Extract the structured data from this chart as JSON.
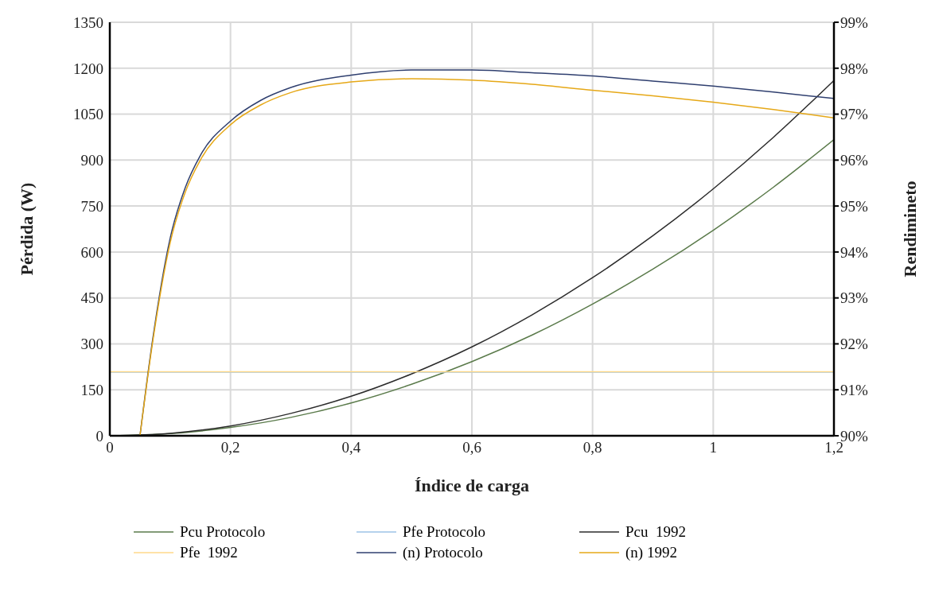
{
  "chart_data": {
    "type": "line",
    "xlabel": "Índice de carga",
    "ylabel": "Pérdida (W)",
    "y2label": "Rendimineto",
    "xlim": [
      0,
      1.2
    ],
    "xticks": [
      0,
      {
        "value": 0.2,
        "label": "0,2"
      },
      {
        "value": 0.4,
        "label": "0,4"
      },
      {
        "value": 0.6,
        "label": "0,6"
      },
      {
        "value": 0.8,
        "label": "0,8"
      },
      1,
      {
        "value": 1.2,
        "label": "1,2"
      }
    ],
    "ylim": [
      0,
      1350
    ],
    "yticks": [
      0,
      150,
      300,
      450,
      600,
      750,
      900,
      1050,
      1200,
      1350
    ],
    "y2lim": [
      90,
      99
    ],
    "y2ticks": [
      {
        "value": 90,
        "label": "90%"
      },
      {
        "value": 91,
        "label": "91%"
      },
      {
        "value": 92,
        "label": "92%"
      },
      {
        "value": 93,
        "label": "93%"
      },
      {
        "value": 94,
        "label": "94%"
      },
      {
        "value": 95,
        "label": "95%"
      },
      {
        "value": 96,
        "label": "96%"
      },
      {
        "value": 97,
        "label": "97%"
      },
      {
        "value": 98,
        "label": "98%"
      },
      {
        "value": 99,
        "label": "99%"
      }
    ],
    "grid": true,
    "legend": "bottom",
    "marker": "none",
    "line_style": "solid",
    "series": [
      {
        "name": "Pcu Protocolo",
        "color": "#5a7a4a",
        "x": [
          0,
          0.1,
          0.2,
          0.3,
          0.4,
          0.5,
          0.6,
          0.7,
          0.8,
          0.9,
          1.0,
          1.1,
          1.2
        ],
        "values": [
          0,
          7,
          27,
          60,
          107,
          168,
          242,
          329,
          430,
          544,
          671,
          812,
          967
        ]
      },
      {
        "name": "Pfe Protocolo",
        "color": "#9dc3e6",
        "x": [
          0,
          1.2
        ],
        "values": [
          208,
          208
        ]
      },
      {
        "name": "Pcu  1992",
        "color": "#2b2b2b",
        "x": [
          0,
          0.1,
          0.2,
          0.3,
          0.4,
          0.5,
          0.6,
          0.7,
          0.8,
          0.9,
          1.0,
          1.1,
          1.2
        ],
        "values": [
          0,
          8,
          32,
          73,
          129,
          202,
          290,
          395,
          516,
          653,
          806,
          975,
          1160
        ]
      },
      {
        "name": "Pfe  1992",
        "color": "#ffd98a",
        "x": [
          0,
          1.2
        ],
        "values": [
          209,
          209
        ]
      },
      {
        "name": "(n) Protocolo",
        "color": "#2f3f6f",
        "axis": "y2",
        "x": [
          0.05,
          0.07,
          0.1,
          0.125,
          0.15,
          0.2,
          0.25,
          0.3,
          0.4,
          0.5,
          0.6,
          0.7,
          0.8,
          0.9,
          1.0,
          1.1,
          1.2
        ],
        "values": [
          90,
          92.0,
          94.3,
          95.4,
          96.1,
          96.85,
          97.3,
          97.58,
          97.85,
          97.96,
          97.96,
          97.9,
          97.83,
          97.72,
          97.61,
          97.48,
          97.34
        ]
      },
      {
        "name": "(n) 1992",
        "color": "#e6a817",
        "axis": "y2",
        "x": [
          0.05,
          0.07,
          0.1,
          0.125,
          0.15,
          0.2,
          0.25,
          0.3,
          0.4,
          0.5,
          0.6,
          0.7,
          0.8,
          0.9,
          1.0,
          1.1,
          1.2
        ],
        "values": [
          90,
          91.95,
          94.2,
          95.3,
          96.0,
          96.77,
          97.2,
          97.47,
          97.7,
          97.77,
          97.74,
          97.65,
          97.52,
          97.4,
          97.26,
          97.1,
          96.92
        ]
      }
    ]
  }
}
